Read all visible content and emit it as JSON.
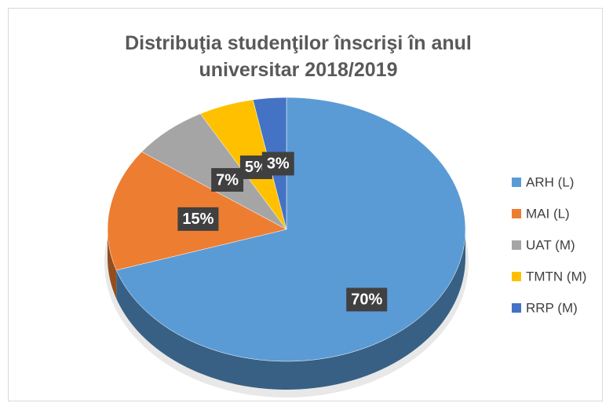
{
  "chart_data": {
    "type": "pie",
    "title": "Distribuţia studenţilor înscrişi în anul universitar 2018/2019",
    "categories": [
      "ARH (L)",
      "MAI (L)",
      "UAT (M)",
      "TMTN (M)",
      "RRP (M)"
    ],
    "values": [
      70,
      15,
      7,
      5,
      3
    ],
    "value_labels": [
      "70%",
      "15%",
      "7%",
      "5%",
      "3%"
    ],
    "colors": [
      "#5b9bd5",
      "#ed7d31",
      "#a5a5a5",
      "#ffc000",
      "#4472c4"
    ],
    "legend": "right"
  }
}
